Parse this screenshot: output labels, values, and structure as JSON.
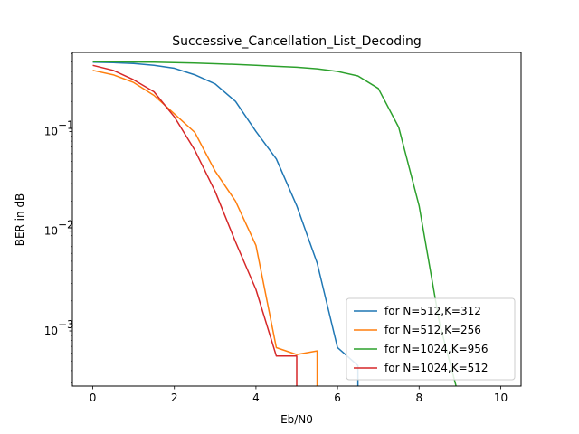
{
  "chart_data": {
    "type": "line",
    "title": "Successive_Cancellation_List_Decoding",
    "xlabel": "Eb/N0",
    "ylabel": "BER in dB",
    "xlim": [
      -0.5,
      10.5
    ],
    "ylim": [
      0.00028,
      0.62
    ],
    "yscale": "log",
    "grid": false,
    "legend_position": "bottom-right",
    "x_ticks": [
      {
        "value": 0,
        "label": "0"
      },
      {
        "value": 2,
        "label": "2"
      },
      {
        "value": 4,
        "label": "4"
      },
      {
        "value": 6,
        "label": "6"
      },
      {
        "value": 8,
        "label": "8"
      },
      {
        "value": 10,
        "label": "10"
      }
    ],
    "y_ticks": [
      {
        "value": 0.1,
        "base": "10",
        "exp": "−1"
      },
      {
        "value": 0.01,
        "base": "10",
        "exp": "−2"
      },
      {
        "value": 0.001,
        "base": "10",
        "exp": "−3"
      }
    ],
    "series": [
      {
        "name": "for N=512,K=312",
        "color": "#1f77b4",
        "x": [
          0,
          0.5,
          1,
          1.5,
          2,
          2.5,
          3,
          3.5,
          4,
          4.5,
          5,
          5.5,
          6,
          6.5,
          6.5
        ],
        "y": [
          0.495,
          0.49,
          0.48,
          0.46,
          0.43,
          0.37,
          0.3,
          0.2,
          0.1,
          0.053,
          0.018,
          0.0048,
          0.00068,
          0.00045,
          0.0002
        ]
      },
      {
        "name": "for N=512,K=256",
        "color": "#ff7f0e",
        "x": [
          0,
          0.5,
          1,
          1.5,
          2,
          2.5,
          3,
          3.5,
          4,
          4.5,
          5,
          5.5,
          5.5
        ],
        "y": [
          0.41,
          0.37,
          0.31,
          0.23,
          0.15,
          0.098,
          0.04,
          0.02,
          0.0072,
          0.00068,
          0.00058,
          0.00063,
          0.0002
        ]
      },
      {
        "name": "for N=1024,K=956",
        "color": "#2ca02c",
        "x": [
          0,
          0.5,
          1,
          1.5,
          2,
          2.5,
          3,
          3.5,
          4,
          4.5,
          5,
          5.5,
          6,
          6.5,
          7,
          7.5,
          8,
          8.5,
          9
        ],
        "y": [
          0.5,
          0.499,
          0.497,
          0.495,
          0.49,
          0.485,
          0.478,
          0.47,
          0.46,
          0.45,
          0.44,
          0.425,
          0.4,
          0.36,
          0.27,
          0.11,
          0.018,
          0.0012,
          0.0002
        ]
      },
      {
        "name": "for N=1024,K=512",
        "color": "#d62728",
        "x": [
          0,
          0.5,
          1,
          1.5,
          2,
          2.5,
          3,
          3.5,
          4,
          4.5,
          5,
          5
        ],
        "y": [
          0.46,
          0.41,
          0.33,
          0.25,
          0.14,
          0.065,
          0.025,
          0.0078,
          0.0026,
          0.00056,
          0.00056,
          0.0002
        ]
      }
    ]
  }
}
